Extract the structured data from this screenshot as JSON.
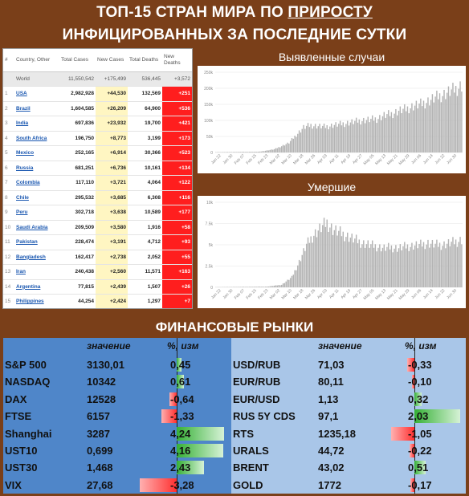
{
  "title": {
    "line1_pre": "ТОП-15 СТРАН МИРА ПО ",
    "line1_u": "ПРИРОСТУ",
    "line2": "ИНФИЦИРОВАННЫХ ЗА ПОСЛЕДНИЕ СУТКИ"
  },
  "table": {
    "headers": [
      "#",
      "Country, Other",
      "Total Cases",
      "New Cases",
      "Total Deaths",
      "New Deaths"
    ],
    "world": [
      "",
      "World",
      "11,550,542",
      "+175,499",
      "536,445",
      "+3,572"
    ],
    "rows": [
      [
        "1",
        "USA",
        "2,982,928",
        "+44,530",
        "132,569",
        "+251"
      ],
      [
        "2",
        "Brazil",
        "1,604,585",
        "+26,209",
        "64,900",
        "+536"
      ],
      [
        "3",
        "India",
        "697,836",
        "+23,932",
        "19,700",
        "+421"
      ],
      [
        "4",
        "South Africa",
        "196,750",
        "+8,773",
        "3,199",
        "+173"
      ],
      [
        "5",
        "Mexico",
        "252,165",
        "+6,914",
        "30,366",
        "+523"
      ],
      [
        "6",
        "Russia",
        "681,251",
        "+6,736",
        "10,161",
        "+134"
      ],
      [
        "7",
        "Colombia",
        "117,110",
        "+3,721",
        "4,064",
        "+122"
      ],
      [
        "8",
        "Chile",
        "295,532",
        "+3,685",
        "6,308",
        "+116"
      ],
      [
        "9",
        "Peru",
        "302,718",
        "+3,638",
        "10,589",
        "+177"
      ],
      [
        "10",
        "Saudi Arabia",
        "209,509",
        "+3,580",
        "1,916",
        "+58"
      ],
      [
        "11",
        "Pakistan",
        "228,474",
        "+3,191",
        "4,712",
        "+93"
      ],
      [
        "12",
        "Bangladesh",
        "162,417",
        "+2,738",
        "2,052",
        "+55"
      ],
      [
        "13",
        "Iran",
        "240,438",
        "+2,560",
        "11,571",
        "+163"
      ],
      [
        "14",
        "Argentina",
        "77,815",
        "+2,439",
        "1,507",
        "+26"
      ],
      [
        "15",
        "Philippines",
        "44,254",
        "+2,424",
        "1,297",
        "+7"
      ]
    ]
  },
  "cases_chart": {
    "title": "Выявленные случаи"
  },
  "deaths_chart": {
    "title": "Умершие"
  },
  "chart_data": [
    {
      "type": "bar",
      "title": "Выявленные случаи",
      "xticks": [
        "Jan 22",
        "Jan 30",
        "Feb 07",
        "Feb 15",
        "Feb 23",
        "Mar 02",
        "Mar 10",
        "Mar 18",
        "Mar 26",
        "Apr 03",
        "Apr 11",
        "Apr 19",
        "Apr 27",
        "May 05",
        "May 13",
        "May 21",
        "May 29",
        "Jun 06",
        "Jun 14",
        "Jun 22",
        "Jun 30"
      ],
      "yticks": [
        "0",
        "50k",
        "100k",
        "150k",
        "200k",
        "250k"
      ],
      "ylim": [
        0,
        250000
      ],
      "anchors": [
        [
          0,
          1000
        ],
        [
          30,
          2500
        ],
        [
          40,
          10000
        ],
        [
          50,
          30000
        ],
        [
          55,
          55000
        ],
        [
          60,
          78000
        ],
        [
          65,
          85000
        ],
        [
          70,
          82000
        ],
        [
          75,
          80000
        ],
        [
          80,
          85000
        ],
        [
          85,
          88000
        ],
        [
          90,
          92000
        ],
        [
          95,
          96000
        ],
        [
          100,
          100000
        ],
        [
          105,
          102000
        ],
        [
          110,
          105000
        ],
        [
          115,
          115000
        ],
        [
          120,
          120000
        ],
        [
          125,
          130000
        ],
        [
          130,
          135000
        ],
        [
          135,
          145000
        ],
        [
          140,
          150000
        ],
        [
          145,
          160000
        ],
        [
          150,
          170000
        ],
        [
          155,
          180000
        ],
        [
          160,
          190000
        ],
        [
          165,
          200000
        ],
        [
          168,
          210000
        ]
      ]
    },
    {
      "type": "bar",
      "title": "Умершие",
      "xticks": [
        "Jan 22",
        "Jan 30",
        "Feb 07",
        "Feb 15",
        "Feb 23",
        "Mar 02",
        "Mar 10",
        "Mar 18",
        "Mar 26",
        "Apr 03",
        "Apr 11",
        "Apr 19",
        "Apr 27",
        "May 05",
        "May 13",
        "May 21",
        "May 29",
        "Jun 06",
        "Jun 14",
        "Jun 22",
        "Jun 30"
      ],
      "yticks": [
        "0",
        "2.5k",
        "5k",
        "7.5k",
        "10k"
      ],
      "ylim": [
        0,
        10000
      ],
      "anchors": [
        [
          0,
          20
        ],
        [
          35,
          80
        ],
        [
          45,
          300
        ],
        [
          52,
          1200
        ],
        [
          57,
          3000
        ],
        [
          62,
          5000
        ],
        [
          67,
          6200
        ],
        [
          72,
          7000
        ],
        [
          76,
          7600
        ],
        [
          80,
          6800
        ],
        [
          85,
          6400
        ],
        [
          90,
          6000
        ],
        [
          95,
          5600
        ],
        [
          100,
          5200
        ],
        [
          105,
          5000
        ],
        [
          110,
          4800
        ],
        [
          115,
          4600
        ],
        [
          120,
          4700
        ],
        [
          125,
          4600
        ],
        [
          130,
          4800
        ],
        [
          135,
          4900
        ],
        [
          140,
          5000
        ],
        [
          145,
          5200
        ],
        [
          150,
          5000
        ],
        [
          155,
          5000
        ],
        [
          160,
          5200
        ],
        [
          165,
          5400
        ],
        [
          168,
          5600
        ]
      ]
    }
  ],
  "finance": {
    "title": "ФИНАНСОВЫЕ РЫНКИ",
    "col_value": "значение",
    "col_pct": "%, изм",
    "left": [
      {
        "name": "S&P 500",
        "value": "3130,01",
        "pct": "0,45",
        "num": 0.45
      },
      {
        "name": "NASDAQ",
        "value": "10342",
        "pct": "0,61",
        "num": 0.61
      },
      {
        "name": "DAX",
        "value": "12528",
        "pct": "-0,64",
        "num": -0.64
      },
      {
        "name": "FTSE",
        "value": "6157",
        "pct": "-1,33",
        "num": -1.33
      },
      {
        "name": "Shanghai",
        "value": "3287",
        "pct": "4,24",
        "num": 4.24
      },
      {
        "name": "UST10",
        "value": "0,699",
        "pct": "4,16",
        "num": 4.16
      },
      {
        "name": "UST30",
        "value": "1,468",
        "pct": "2,43",
        "num": 2.43
      },
      {
        "name": "VIX",
        "value": "27,68",
        "pct": "-3,28",
        "num": -3.28
      }
    ],
    "right": [
      {
        "name": "USD/RUB",
        "value": "71,03",
        "pct": "-0,33",
        "num": -0.33
      },
      {
        "name": "EUR/RUB",
        "value": "80,11",
        "pct": "-0,10",
        "num": -0.1
      },
      {
        "name": "EUR/USD",
        "value": "1,13",
        "pct": "0,32",
        "num": 0.32
      },
      {
        "name": "RUS 5Y CDS",
        "value": "97,1",
        "pct": "2,03",
        "num": 2.03
      },
      {
        "name": "RTS",
        "value": "1235,18",
        "pct": "-1,05",
        "num": -1.05
      },
      {
        "name": "URALS",
        "value": "44,72",
        "pct": "-0,22",
        "num": -0.22
      },
      {
        "name": "BRENT",
        "value": "43,02",
        "pct": "0,51",
        "num": 0.51
      },
      {
        "name": "GOLD",
        "value": "1772",
        "pct": "-0,17",
        "num": -0.17
      }
    ]
  },
  "colors": {
    "background": "#7a3f19",
    "table_red": "#ff1e1e",
    "table_yellow": "#fff6c2",
    "fin_left": "#4f86c9",
    "fin_right": "#a9c6e8"
  }
}
